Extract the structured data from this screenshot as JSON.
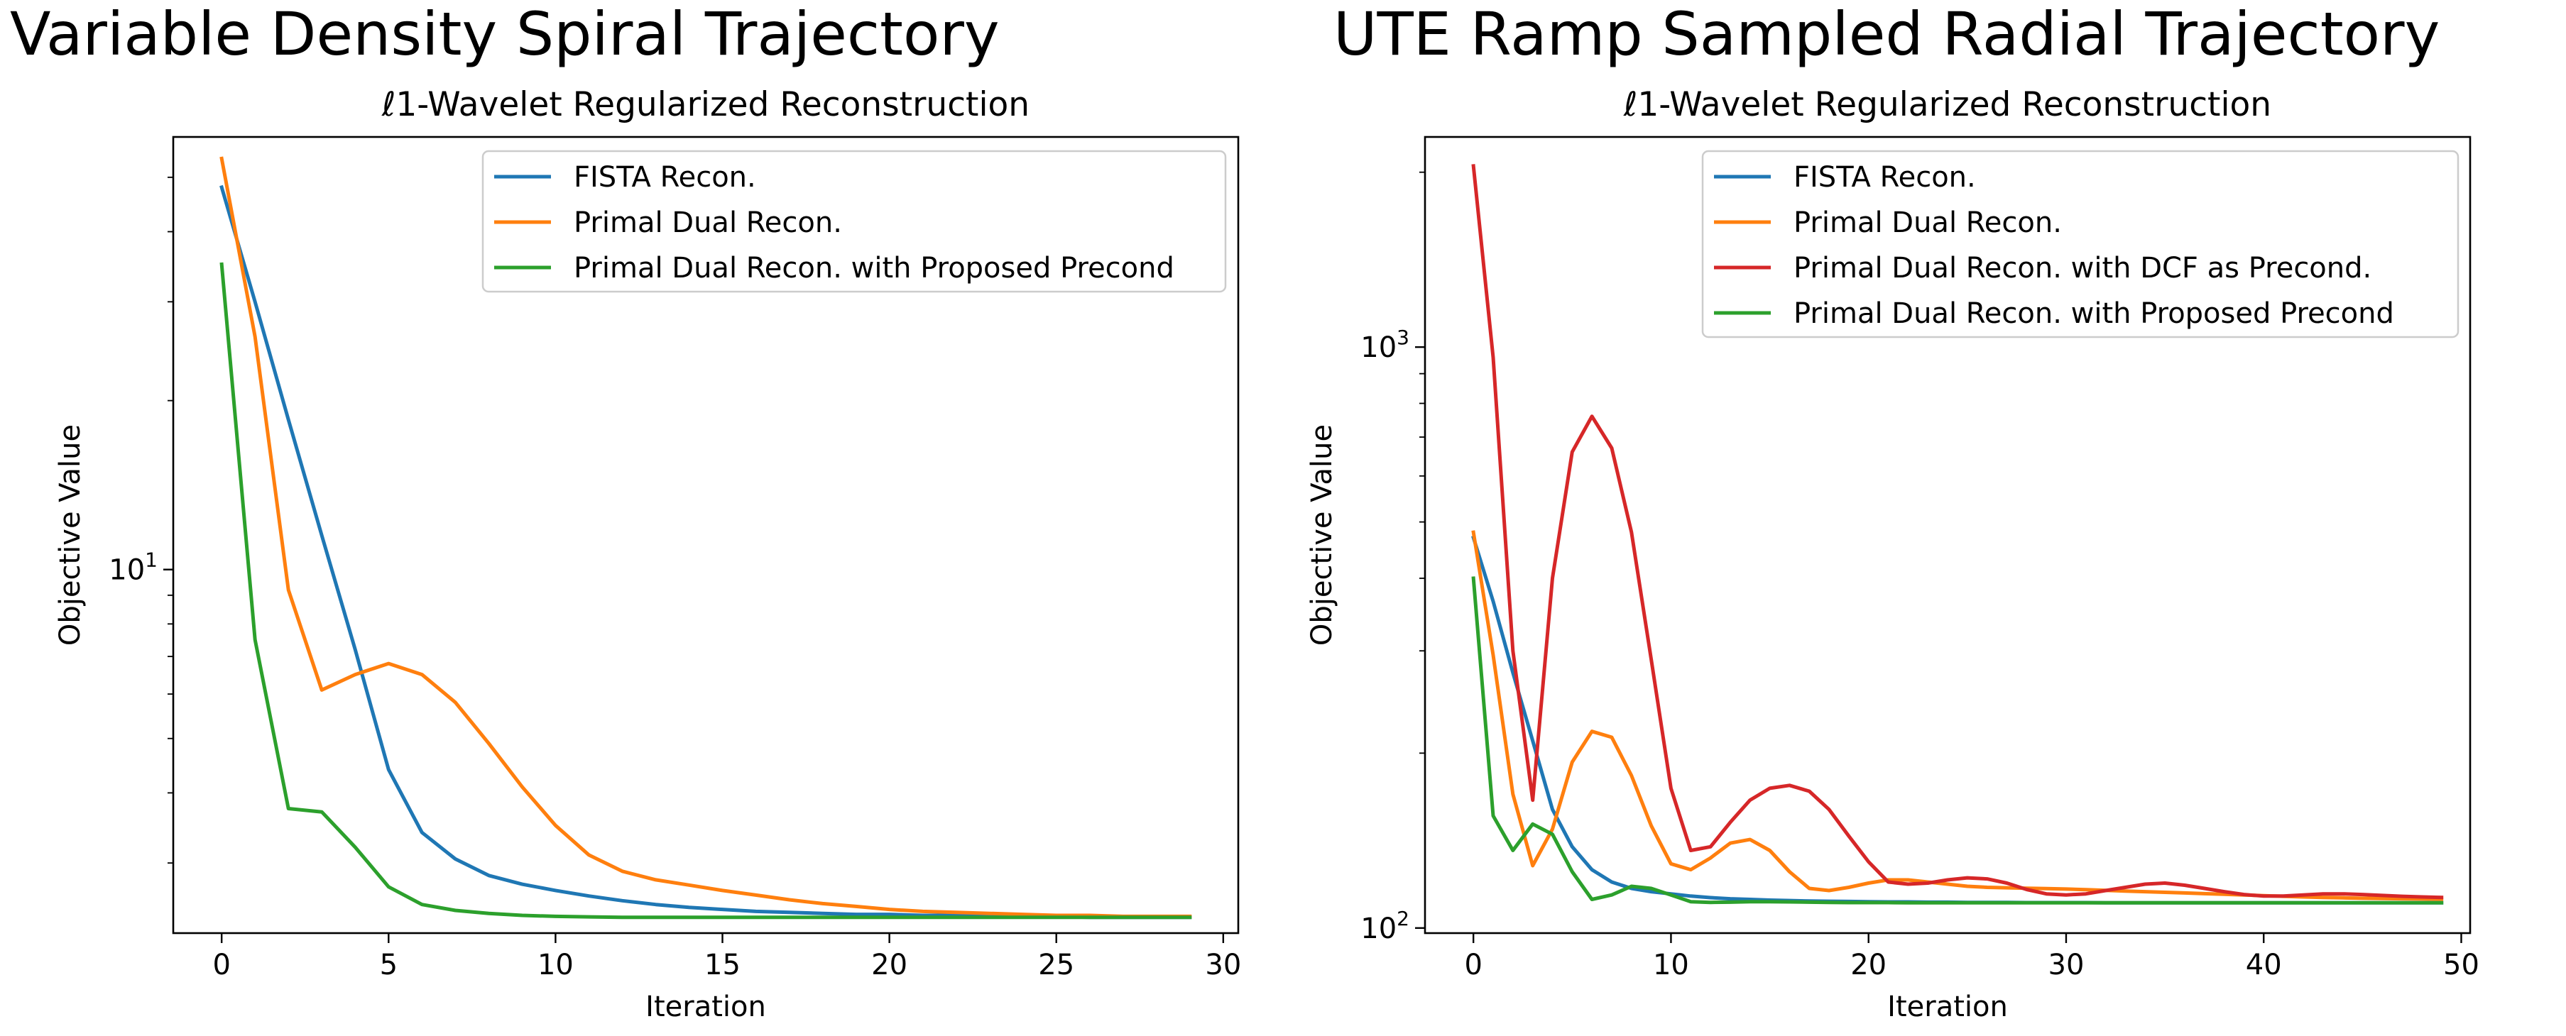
{
  "figure_titles": {
    "left": "Variable Density Spiral Trajectory",
    "right": "UTE Ramp Sampled Radial Trajectory"
  },
  "colors": {
    "blue": "#1f77b4",
    "orange": "#ff7f0e",
    "red": "#d62728",
    "green": "#2ca02c"
  },
  "chart_data": [
    {
      "type": "line",
      "title": "ℓ1-Wavelet Regularized Reconstruction",
      "xlabel": "Iteration",
      "ylabel": "Objective Value",
      "yscale": "log",
      "xlim": [
        -1.45,
        30.45
      ],
      "ylim": [
        2.25,
        59
      ],
      "xticks": [
        0,
        5,
        10,
        15,
        20,
        25,
        30
      ],
      "xtick_labels": [
        "0",
        "5",
        "10",
        "15",
        "20",
        "25",
        "30"
      ],
      "yticks": [
        10
      ],
      "ytick_labels": [
        "10^1"
      ],
      "legend_position": "top-right",
      "series": [
        {
          "name": "FISTA Recon.",
          "color": "blue",
          "x": [
            0,
            1,
            2,
            3,
            4,
            5,
            6,
            7,
            8,
            9,
            10,
            11,
            12,
            13,
            14,
            15,
            16,
            17,
            18,
            19,
            20,
            21,
            22,
            23,
            24,
            25,
            26,
            27,
            28,
            29
          ],
          "values": [
            48,
            30,
            18.5,
            11.5,
            7.2,
            4.4,
            3.4,
            3.05,
            2.85,
            2.75,
            2.68,
            2.62,
            2.57,
            2.53,
            2.5,
            2.48,
            2.46,
            2.45,
            2.44,
            2.43,
            2.43,
            2.42,
            2.42,
            2.41,
            2.41,
            2.41,
            2.4,
            2.4,
            2.4,
            2.4
          ]
        },
        {
          "name": "Primal Dual Recon.",
          "color": "orange",
          "x": [
            0,
            1,
            2,
            3,
            4,
            5,
            6,
            7,
            8,
            9,
            10,
            11,
            12,
            13,
            14,
            15,
            16,
            17,
            18,
            19,
            20,
            21,
            22,
            23,
            24,
            25,
            26,
            27,
            28,
            29
          ],
          "values": [
            54,
            26,
            9.2,
            6.1,
            6.5,
            6.8,
            6.5,
            5.8,
            4.9,
            4.1,
            3.5,
            3.1,
            2.9,
            2.8,
            2.74,
            2.68,
            2.63,
            2.58,
            2.54,
            2.51,
            2.48,
            2.46,
            2.45,
            2.44,
            2.43,
            2.42,
            2.42,
            2.41,
            2.41,
            2.41
          ]
        },
        {
          "name": "Primal Dual Recon. with Proposed Precond",
          "color": "green",
          "x": [
            0,
            1,
            2,
            3,
            4,
            5,
            6,
            7,
            8,
            9,
            10,
            11,
            12,
            13,
            14,
            15,
            16,
            17,
            18,
            19,
            20,
            21,
            22,
            23,
            24,
            25,
            26,
            27,
            28,
            29
          ],
          "values": [
            35,
            7.5,
            3.75,
            3.7,
            3.2,
            2.72,
            2.53,
            2.47,
            2.44,
            2.42,
            2.41,
            2.405,
            2.4,
            2.4,
            2.4,
            2.4,
            2.4,
            2.4,
            2.4,
            2.4,
            2.4,
            2.4,
            2.4,
            2.4,
            2.4,
            2.4,
            2.4,
            2.4,
            2.4,
            2.4
          ]
        }
      ]
    },
    {
      "type": "line",
      "title": "ℓ1-Wavelet Regularized Reconstruction",
      "xlabel": "Iteration",
      "ylabel": "Objective Value",
      "yscale": "log",
      "xlim": [
        -2.45,
        50.45
      ],
      "ylim": [
        98,
        2300
      ],
      "xticks": [
        0,
        10,
        20,
        30,
        40,
        50
      ],
      "xtick_labels": [
        "0",
        "10",
        "20",
        "30",
        "40",
        "50"
      ],
      "yticks": [
        100,
        1000
      ],
      "ytick_labels": [
        "10^2",
        "10^3"
      ],
      "legend_position": "top-right",
      "series": [
        {
          "name": "FISTA Recon.",
          "color": "blue",
          "x": [
            0,
            1,
            2,
            3,
            4,
            5,
            6,
            7,
            8,
            9,
            10,
            11,
            12,
            13,
            14,
            15,
            16,
            17,
            18,
            19,
            20,
            21,
            22,
            23,
            24,
            25,
            26,
            27,
            28,
            29,
            30,
            31,
            32,
            33,
            34,
            35,
            36,
            37,
            38,
            39,
            40,
            41,
            42,
            43,
            44,
            45,
            46,
            47,
            48,
            49
          ],
          "values": [
            470,
            365,
            275,
            210,
            160,
            138,
            126,
            120,
            117,
            115.5,
            114.5,
            113.5,
            112.8,
            112.3,
            112,
            111.7,
            111.5,
            111.3,
            111.2,
            111.1,
            111,
            110.9,
            110.9,
            110.8,
            110.8,
            110.7,
            110.7,
            110.7,
            110.6,
            110.6,
            110.6,
            110.6,
            110.5,
            110.5,
            110.5,
            110.5,
            110.5,
            110.5,
            110.5,
            110.5,
            110.5,
            110.5,
            110.5,
            110.5,
            110.5,
            110.5,
            110.5,
            110.5,
            110.5,
            110.5
          ]
        },
        {
          "name": "Primal Dual Recon.",
          "color": "orange",
          "x": [
            0,
            1,
            2,
            3,
            4,
            5,
            6,
            7,
            8,
            9,
            10,
            11,
            12,
            13,
            14,
            15,
            16,
            17,
            18,
            19,
            20,
            21,
            22,
            23,
            24,
            25,
            26,
            27,
            28,
            29,
            30,
            31,
            32,
            33,
            34,
            35,
            36,
            37,
            38,
            39,
            40,
            41,
            42,
            43,
            44,
            45,
            46,
            47,
            48,
            49
          ],
          "values": [
            480,
            295,
            170,
            128,
            148,
            193,
            218,
            213,
            183,
            150,
            129,
            126,
            132,
            140,
            142,
            136,
            125,
            117,
            116,
            117.5,
            119.5,
            121,
            121,
            120,
            119,
            118,
            117.5,
            117.3,
            117.1,
            116.9,
            116.7,
            116.4,
            116.1,
            115.8,
            115.5,
            115.2,
            114.9,
            114.6,
            114.3,
            114,
            113.7,
            113.4,
            113.1,
            112.9,
            112.7,
            112.5,
            112.4,
            112.3,
            112.2,
            112.1
          ]
        },
        {
          "name": "Primal Dual Recon. with DCF as Precond.",
          "color": "red",
          "x": [
            0,
            1,
            2,
            3,
            4,
            5,
            6,
            7,
            8,
            9,
            10,
            11,
            12,
            13,
            14,
            15,
            16,
            17,
            18,
            19,
            20,
            21,
            22,
            23,
            24,
            25,
            26,
            27,
            28,
            29,
            30,
            31,
            32,
            33,
            34,
            35,
            36,
            37,
            38,
            39,
            40,
            41,
            42,
            43,
            44,
            45,
            46,
            47,
            48,
            49
          ],
          "values": [
            2050,
            960,
            300,
            166,
            400,
            660,
            760,
            670,
            480,
            290,
            174,
            136,
            138,
            152,
            166,
            174,
            176,
            172,
            160,
            144,
            130,
            120,
            119,
            119.5,
            121,
            122,
            121.5,
            119.5,
            116.5,
            114.5,
            114,
            114.5,
            116,
            117.5,
            119,
            119.5,
            118.5,
            117,
            115.5,
            114.2,
            113.5,
            113.5,
            114,
            114.5,
            114.5,
            114.2,
            113.8,
            113.4,
            113.1,
            112.9
          ]
        },
        {
          "name": "Primal Dual Recon. with Proposed Precond",
          "color": "green",
          "x": [
            0,
            1,
            2,
            3,
            4,
            5,
            6,
            7,
            8,
            9,
            10,
            11,
            12,
            13,
            14,
            15,
            16,
            17,
            18,
            19,
            20,
            21,
            22,
            23,
            24,
            25,
            26,
            27,
            28,
            29,
            30,
            31,
            32,
            33,
            34,
            35,
            36,
            37,
            38,
            39,
            40,
            41,
            42,
            43,
            44,
            45,
            46,
            47,
            48,
            49
          ],
          "values": [
            400,
            156,
            136,
            151,
            145,
            125,
            112,
            114,
            118,
            117,
            114,
            111,
            110.7,
            110.8,
            111,
            111,
            110.9,
            110.8,
            110.7,
            110.6,
            110.6,
            110.6,
            110.5,
            110.5,
            110.5,
            110.5,
            110.5,
            110.5,
            110.5,
            110.5,
            110.5,
            110.5,
            110.5,
            110.5,
            110.5,
            110.5,
            110.5,
            110.5,
            110.5,
            110.5,
            110.5,
            110.5,
            110.5,
            110.5,
            110.5,
            110.5,
            110.5,
            110.5,
            110.5,
            110.5
          ]
        }
      ]
    }
  ]
}
